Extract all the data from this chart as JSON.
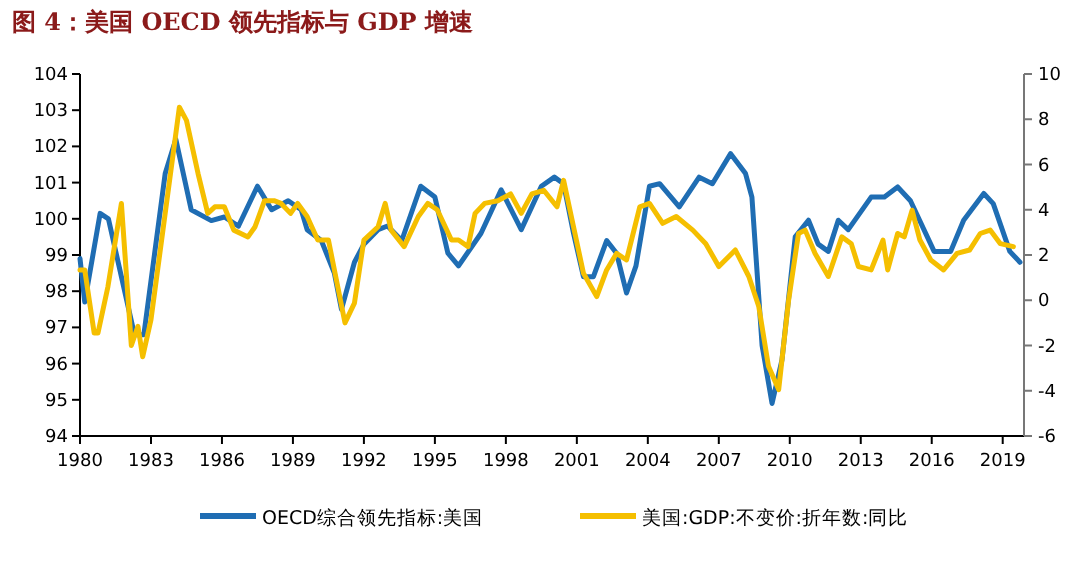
{
  "chart_data": {
    "type": "line",
    "title": "图 4：美国 OECD 领先指标与 GDP 增速",
    "xlim": [
      1980,
      2019.9
    ],
    "xticks": [
      1980,
      1983,
      1986,
      1989,
      1992,
      1995,
      1998,
      2001,
      2004,
      2007,
      2010,
      2013,
      2016,
      2019
    ],
    "ylim": [
      94,
      104
    ],
    "yticks": [
      94,
      95,
      96,
      97,
      98,
      99,
      100,
      101,
      102,
      103,
      104
    ],
    "y2lim": [
      -6,
      10
    ],
    "y2ticks": [
      -6,
      -4,
      -2,
      0,
      2,
      4,
      6,
      8,
      10
    ],
    "grid": false,
    "legend": "bottom",
    "line_style": "solid",
    "series": [
      {
        "name": "OECD综合领先指标:美国",
        "color": "#1f6db3",
        "axis": "y",
        "x": [
          1980,
          1980.2,
          1980.85,
          1981.2,
          1982.3,
          1982.7,
          1983.6,
          1984.05,
          1984.7,
          1985.55,
          1986.1,
          1986.7,
          1987.5,
          1988.1,
          1988.8,
          1989.35,
          1989.6,
          1990.2,
          1990.75,
          1991.05,
          1991.6,
          1992.0,
          1992.6,
          1993.0,
          1993.6,
          1994.4,
          1995.0,
          1995.55,
          1996.0,
          1996.95,
          1997.8,
          1998.65,
          1999.5,
          2000.05,
          2000.44,
          2000.86,
          2001.28,
          2001.7,
          2002.26,
          2002.68,
          2003.1,
          2003.5,
          2004.07,
          2004.5,
          2005.33,
          2006.17,
          2006.73,
          2007.5,
          2008.13,
          2008.4,
          2008.83,
          2009.25,
          2009.67,
          2010.23,
          2010.79,
          2011.2,
          2011.63,
          2012.05,
          2012.47,
          2013.44,
          2014.0,
          2014.56,
          2015.1,
          2016.1,
          2016.8,
          2017.35,
          2018.2,
          2018.6,
          2019.3,
          2019.73
        ],
        "values": [
          98.9,
          97.7,
          100.15,
          100.0,
          96.8,
          96.8,
          101.25,
          102.2,
          100.25,
          99.95,
          100.05,
          99.8,
          100.9,
          100.25,
          100.5,
          100.25,
          99.7,
          99.4,
          98.5,
          97.5,
          98.8,
          99.3,
          99.7,
          99.8,
          99.4,
          100.9,
          100.6,
          99.05,
          98.7,
          99.6,
          100.8,
          99.7,
          100.9,
          101.15,
          100.97,
          99.6,
          98.4,
          98.4,
          99.4,
          99.05,
          97.95,
          98.7,
          100.9,
          100.97,
          100.33,
          101.15,
          100.97,
          101.8,
          101.25,
          100.6,
          96.5,
          94.9,
          96.1,
          99.5,
          99.96,
          99.3,
          99.1,
          99.96,
          99.7,
          100.6,
          100.6,
          100.88,
          100.5,
          99.1,
          99.1,
          99.96,
          100.7,
          100.42,
          99.1,
          98.8
        ]
      },
      {
        "name": "美国:GDP:不变价:折年数:同比",
        "color": "#f5bf00",
        "axis": "y2",
        "x": [
          1980,
          1980.2,
          1980.6,
          1980.76,
          1981.18,
          1981.75,
          1982.17,
          1982.45,
          1982.65,
          1983.0,
          1984.2,
          1984.5,
          1984.99,
          1985.4,
          1985.7,
          1986.1,
          1986.5,
          1987.1,
          1987.4,
          1987.8,
          1988.2,
          1988.5,
          1988.9,
          1989.2,
          1989.6,
          1990.05,
          1990.5,
          1991.2,
          1991.6,
          1992.0,
          1992.6,
          1992.9,
          1993.15,
          1993.7,
          1994.3,
          1994.7,
          1995.1,
          1995.7,
          1996.0,
          1996.4,
          1996.7,
          1997.1,
          1997.66,
          1998.2,
          1998.65,
          1999.1,
          1999.6,
          2000.16,
          2000.44,
          2000.86,
          2001.28,
          2001.84,
          2002.26,
          2002.68,
          2003.1,
          2003.66,
          2004.07,
          2004.63,
          2005.2,
          2005.9,
          2006.45,
          2007.0,
          2007.7,
          2008.27,
          2008.69,
          2009.1,
          2009.53,
          2009.95,
          2010.37,
          2010.65,
          2011.07,
          2011.63,
          2012.2,
          2012.6,
          2012.9,
          2013.44,
          2013.94,
          2014.14,
          2014.56,
          2014.84,
          2015.17,
          2015.5,
          2015.96,
          2016.5,
          2017.07,
          2017.6,
          2018.05,
          2018.47,
          2018.9,
          2019.45
        ],
        "values": [
          1.34,
          1.34,
          -1.45,
          -1.45,
          0.6,
          4.28,
          -2.0,
          -1.15,
          -2.5,
          -0.86,
          8.53,
          7.95,
          5.6,
          3.84,
          4.13,
          4.13,
          3.1,
          2.8,
          3.25,
          4.4,
          4.4,
          4.28,
          3.84,
          4.28,
          3.7,
          2.66,
          2.66,
          -1.0,
          -0.13,
          2.66,
          3.25,
          4.28,
          3.1,
          2.37,
          3.7,
          4.28,
          4.0,
          2.66,
          2.66,
          2.37,
          3.84,
          4.28,
          4.4,
          4.7,
          3.84,
          4.7,
          4.86,
          4.13,
          5.3,
          3.25,
          1.19,
          0.16,
          1.34,
          2.07,
          1.78,
          4.13,
          4.28,
          3.4,
          3.7,
          3.1,
          2.5,
          1.49,
          2.22,
          1.05,
          -0.28,
          -2.92,
          -3.95,
          0.0,
          2.95,
          3.1,
          2.07,
          1.05,
          2.8,
          2.5,
          1.49,
          1.34,
          2.66,
          1.34,
          2.95,
          2.8,
          3.98,
          2.66,
          1.78,
          1.34,
          2.07,
          2.22,
          2.95,
          3.1,
          2.5,
          2.37
        ]
      }
    ]
  }
}
